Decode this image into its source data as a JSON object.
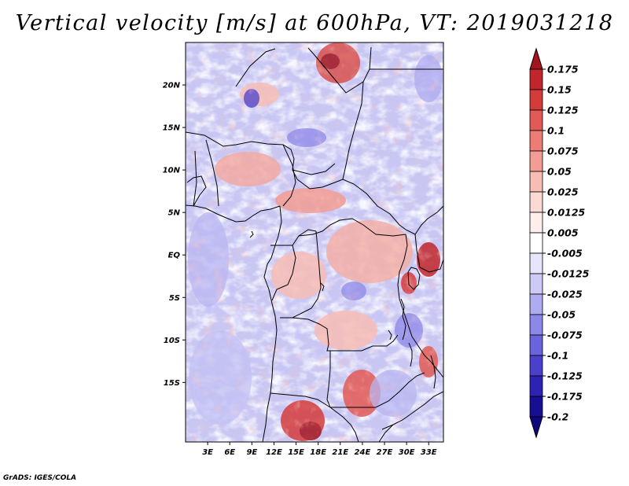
{
  "title": "Vertical velocity [m/s] at 600hPa, VT: 2019031218",
  "credit": "GrADS: IGES/COLA",
  "map": {
    "variable": "Vertical velocity",
    "units": "m/s",
    "level": "600hPa",
    "valid_time": "2019031218",
    "lon_range": [
      0,
      35
    ],
    "lat_range": [
      -22,
      25
    ],
    "lat_labels": [
      {
        "lat": 20,
        "text": "20N"
      },
      {
        "lat": 15,
        "text": "15N"
      },
      {
        "lat": 10,
        "text": "10N"
      },
      {
        "lat": 5,
        "text": "5N"
      },
      {
        "lat": 0,
        "text": "EQ"
      },
      {
        "lat": -5,
        "text": "5S"
      },
      {
        "lat": -10,
        "text": "10S"
      },
      {
        "lat": -15,
        "text": "15S"
      }
    ],
    "lon_labels": [
      {
        "lon": 3,
        "text": "3E"
      },
      {
        "lon": 6,
        "text": "6E"
      },
      {
        "lon": 9,
        "text": "9E"
      },
      {
        "lon": 12,
        "text": "12E"
      },
      {
        "lon": 15,
        "text": "15E"
      },
      {
        "lon": 18,
        "text": "18E"
      },
      {
        "lon": 21,
        "text": "21E"
      },
      {
        "lon": 24,
        "text": "24E"
      },
      {
        "lon": 27,
        "text": "27E"
      },
      {
        "lon": 30,
        "text": "30E"
      },
      {
        "lon": 33,
        "text": "33E"
      }
    ]
  },
  "colorbar": {
    "labels": [
      "0.175",
      "0.15",
      "0.125",
      "0.1",
      "0.075",
      "0.05",
      "0.025",
      "0.0125",
      "0.005",
      "-0.005",
      "-0.0125",
      "-0.025",
      "-0.05",
      "-0.075",
      "-0.1",
      "-0.125",
      "-0.175",
      "-0.2"
    ],
    "colors": [
      "#a4141e",
      "#c0262c",
      "#d43c3c",
      "#e25a55",
      "#ec7c74",
      "#f29c93",
      "#f7bdb5",
      "#fbdad4",
      "#fdeeec",
      "#ffffff",
      "#e6e5fb",
      "#cdcbf6",
      "#aeabf0",
      "#8d88e8",
      "#6b63dc",
      "#4a40cc",
      "#2d22b4",
      "#170e92",
      "#0e0880"
    ]
  }
}
